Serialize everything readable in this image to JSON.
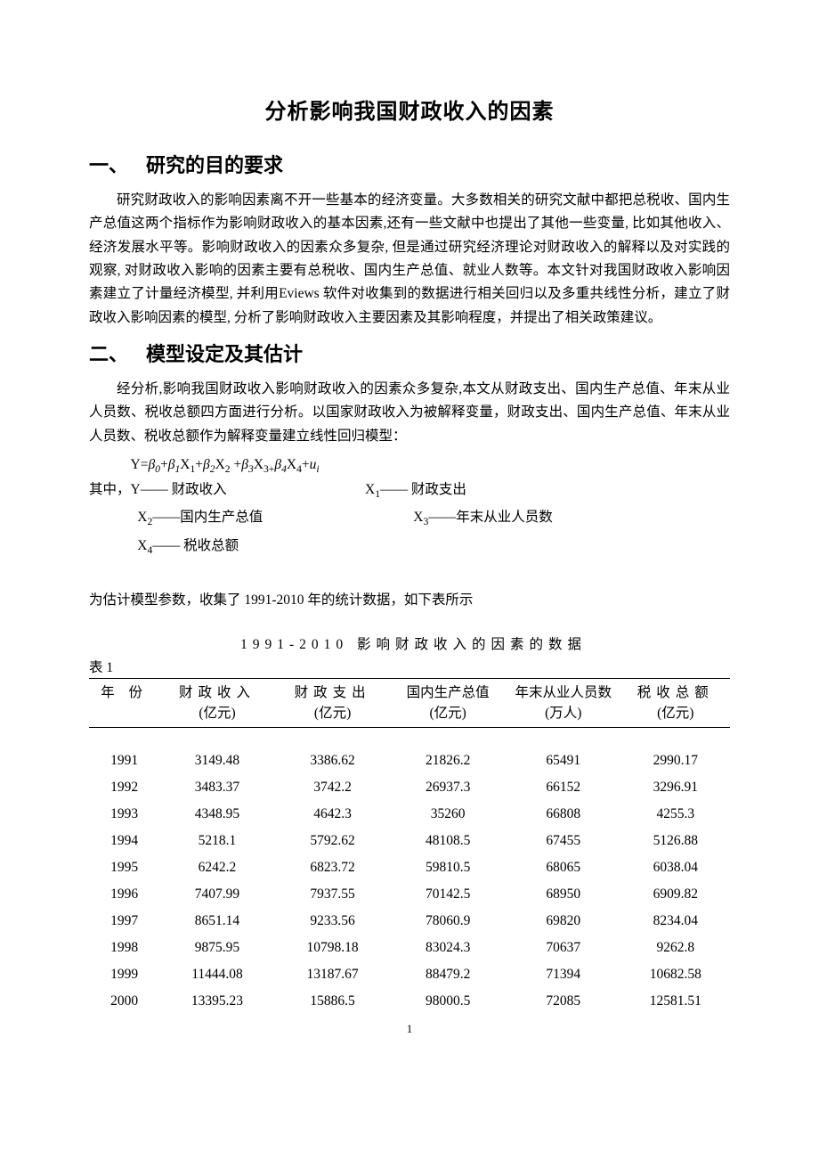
{
  "title": "分析影响我国财政收入的因素",
  "section1": {
    "number": "一、",
    "heading": "研究的目的要求",
    "paragraph": "研究财政收入的影响因素离不开一些基本的经济变量。大多数相关的研究文献中都把总税收、国内生产总值这两个指标作为影响财政收入的基本因素,还有一些文献中也提出了其他一些变量,  比如其他收入、经济发展水平等。影响财政收入的因素众多复杂,  但是通过研究经济理论对财政收入的解释以及对实践的观察,  对财政收入影响的因素主要有总税收、国内生产总值、就业人数等。本文针对我国财政收入影响因素建立了计量经济模型,  并利用Eviews 软件对收集到的数据进行相关回归以及多重共线性分析，建立了财政收入影响因素的模型,  分析了影响财政收入主要因素及其影响程度，并提出了相关政策建议。"
  },
  "section2": {
    "number": "二、",
    "heading": "模型设定及其估计",
    "paragraph": "经分析,影响我国财政收入影响财政收入的因素众多复杂,本文从财政支出、国内生产总值、年末从业人员数、税收总额四方面进行分析。以国家财政收入为被解释变量，财政支出、国内生产总值、年末从业人员数、税收总额作为解释变量建立线性回归模型："
  },
  "equation": "Y=β₀+β₁X₁+β₂X₂ +β₃X₃₊β₄X₄+uᵢ",
  "vars": {
    "prefix": "其中，",
    "y_label": "Y—— 财政收入",
    "x1_label": "—— 财政支出",
    "x2_label": "——国内生产总值",
    "x3_label": "——年末从业人员数",
    "x4_label": "—— 税收总额"
  },
  "data_note": "为估计模型参数，收集了 1991-2010 年的统计数据，如下表所示",
  "table": {
    "caption": "1991-2010 影响财政收入的因素的数据",
    "label": "表 1",
    "columns": [
      {
        "h1": "年 份",
        "h2": ""
      },
      {
        "h1": "财政收入",
        "h2": "(亿元)"
      },
      {
        "h1": "财政支出",
        "h2": "(亿元)"
      },
      {
        "h1": "国内生产总值",
        "h2": "(亿元)"
      },
      {
        "h1": "年末从业人员数",
        "h2": "(万人)"
      },
      {
        "h1": "税收总额",
        "h2": "(亿元)"
      }
    ],
    "rows": [
      [
        "1991",
        "3149.48",
        "3386.62",
        "21826.2",
        "65491",
        "2990.17"
      ],
      [
        "1992",
        "3483.37",
        "3742.2",
        "26937.3",
        "66152",
        "3296.91"
      ],
      [
        "1993",
        "4348.95",
        "4642.3",
        "35260",
        "66808",
        "4255.3"
      ],
      [
        "1994",
        "5218.1",
        "5792.62",
        "48108.5",
        "67455",
        "5126.88"
      ],
      [
        "1995",
        "6242.2",
        "6823.72",
        "59810.5",
        "68065",
        "6038.04"
      ],
      [
        "1996",
        "7407.99",
        "7937.55",
        "70142.5",
        "68950",
        "6909.82"
      ],
      [
        "1997",
        "8651.14",
        "9233.56",
        "78060.9",
        "69820",
        "8234.04"
      ],
      [
        "1998",
        "9875.95",
        "10798.18",
        "83024.3",
        "70637",
        "9262.8"
      ],
      [
        "1999",
        "11444.08",
        "13187.67",
        "88479.2",
        "71394",
        "10682.58"
      ],
      [
        "2000",
        "13395.23",
        "15886.5",
        "98000.5",
        "72085",
        "12581.51"
      ]
    ]
  },
  "page_number": "1",
  "style": {
    "background": "#ffffff",
    "text_color": "#000000",
    "title_fontsize": 24,
    "heading_fontsize": 22,
    "body_fontsize": 15.5,
    "line_height": 1.7,
    "border_color": "#000000"
  }
}
